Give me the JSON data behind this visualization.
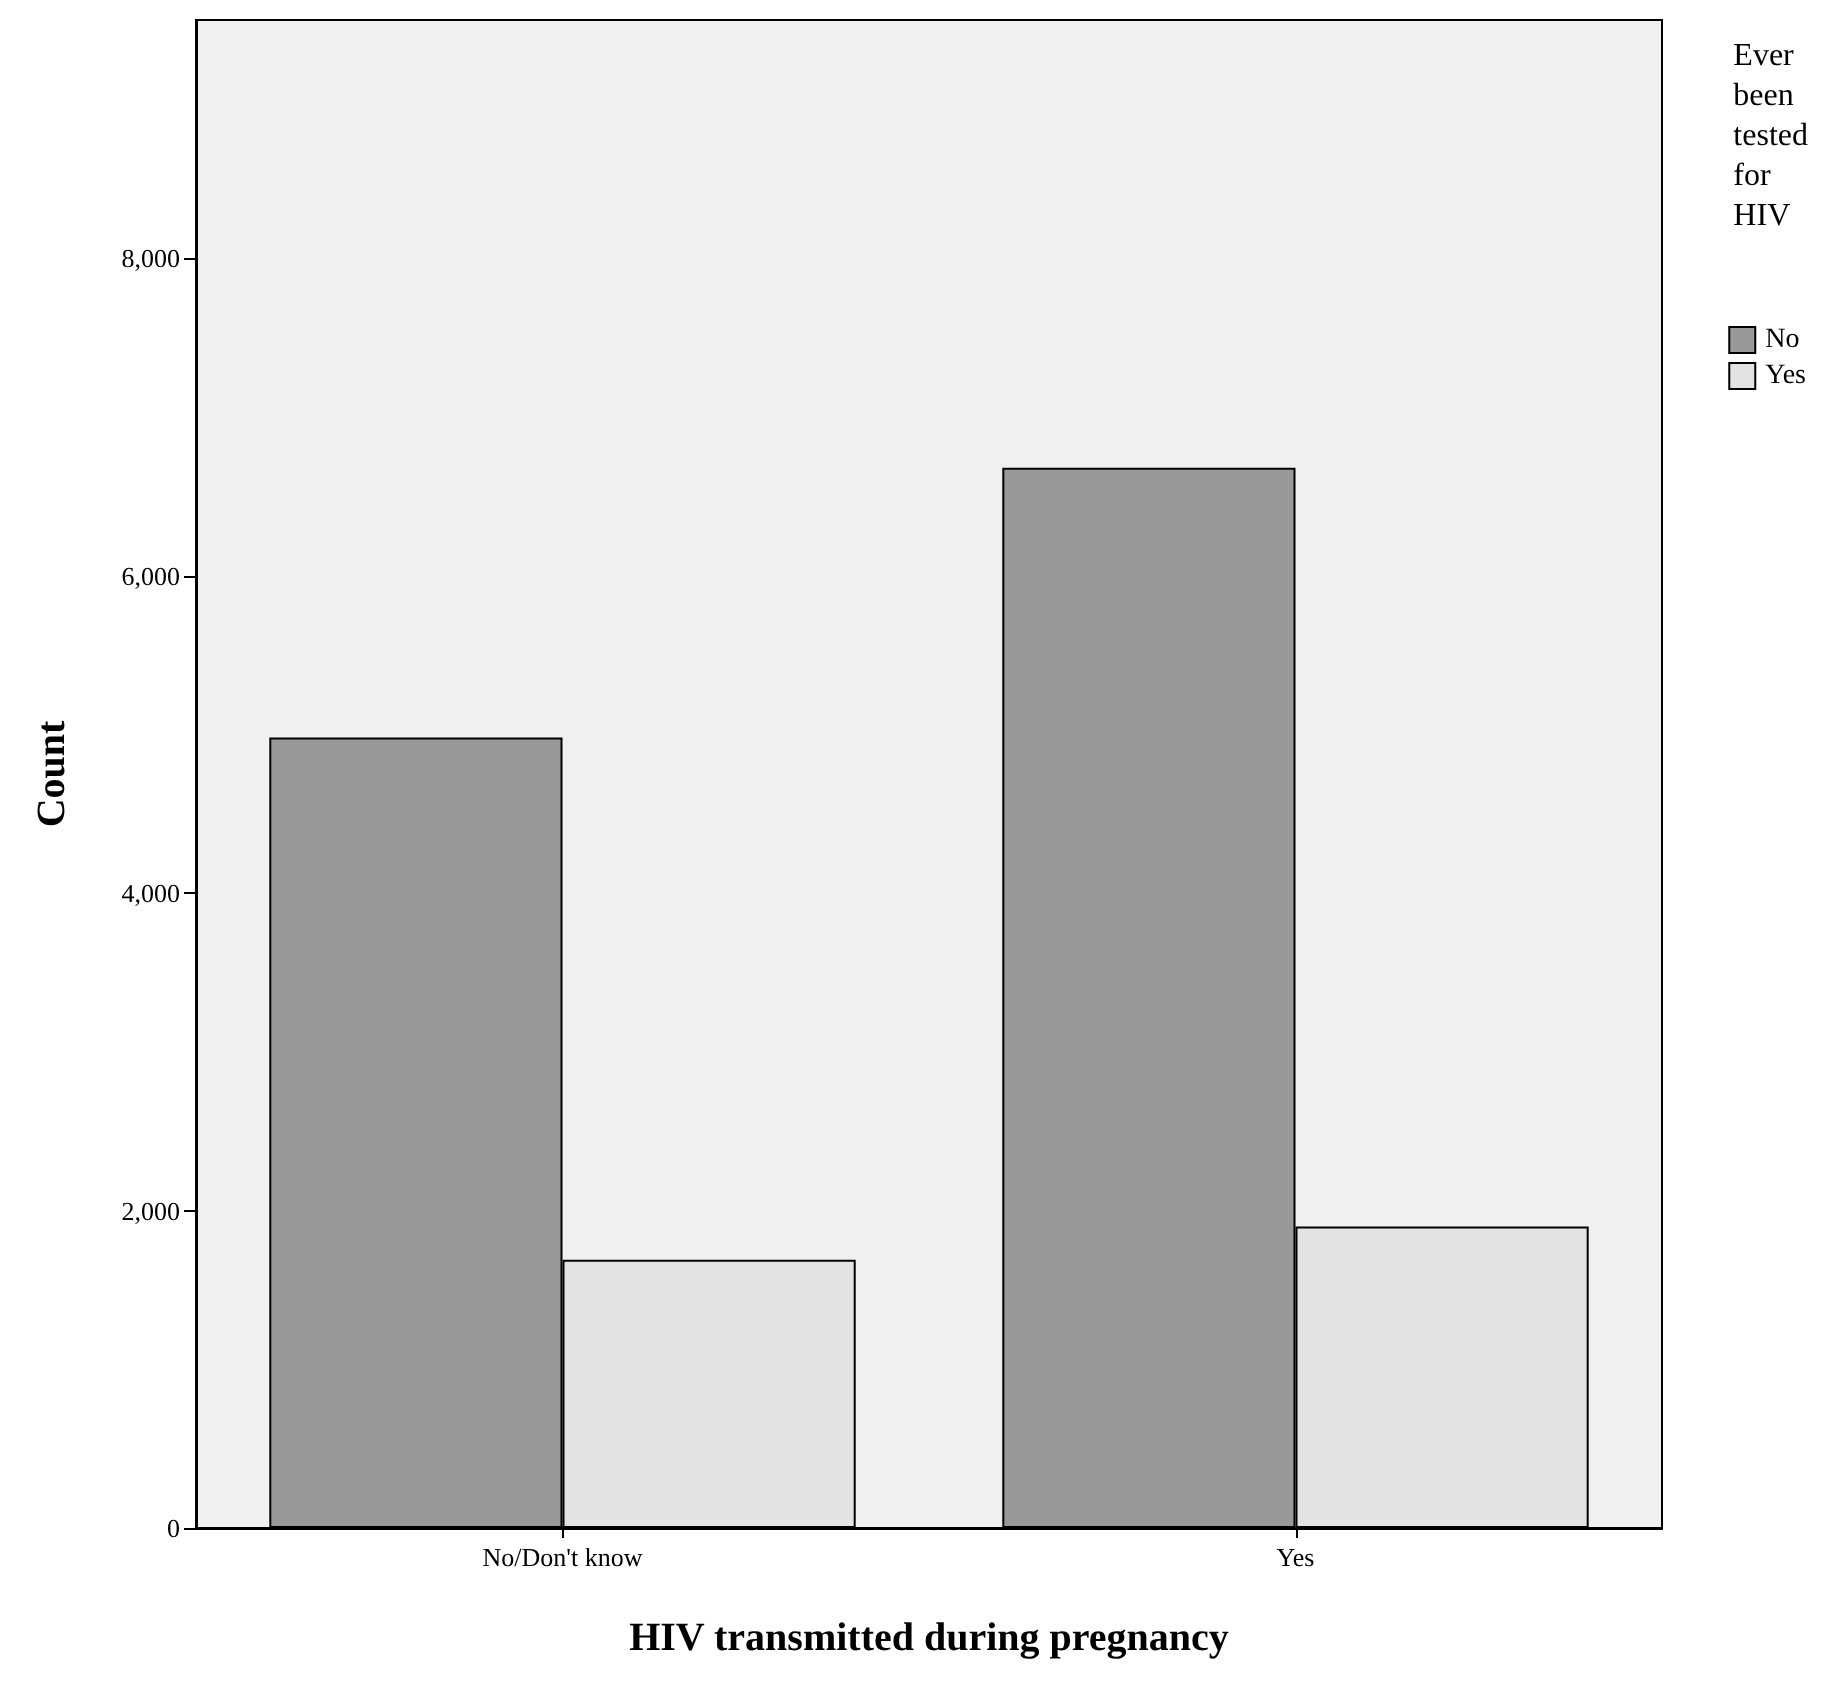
{
  "chart_data": {
    "type": "bar",
    "xlabel": "HIV transmitted during pregnancy",
    "ylabel": "Count",
    "legend_title": "Ever been tested for HIV",
    "categories": [
      "No/Don't know",
      "Yes"
    ],
    "series": [
      {
        "name": "No",
        "color": "#999999",
        "values": [
          4980,
          6680
        ]
      },
      {
        "name": "Yes",
        "color": "#e3e3e3",
        "values": [
          1690,
          1900
        ]
      }
    ],
    "ylim": [
      0,
      9500
    ],
    "yticks": [
      {
        "value": 0,
        "label": "0"
      },
      {
        "value": 2000,
        "label": "2,000"
      },
      {
        "value": 4000,
        "label": "4,000"
      },
      {
        "value": 6000,
        "label": "6,000"
      },
      {
        "value": 8000,
        "label": "8,000"
      }
    ],
    "grid": false,
    "legend": "top right"
  }
}
